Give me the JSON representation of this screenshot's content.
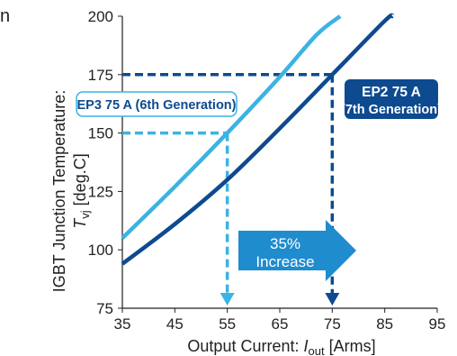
{
  "cut_text": "n",
  "colors": {
    "ep3": "#3bb3e3",
    "ep2": "#0d4a8f",
    "arrow": "#1f8ccd",
    "text": "#231f20"
  },
  "chart_data": {
    "type": "line",
    "xlabel": {
      "main": "Output Current: ",
      "italic": "I",
      "sub": "out",
      "unit": " [Arms]"
    },
    "ylabel": {
      "line1": "IGBT Junction Temperature:",
      "italic": "T",
      "sub": "vj",
      "unit": " [deg.C]"
    },
    "xlim": [
      35,
      95
    ],
    "ylim": [
      75,
      200
    ],
    "xticks": [
      "35",
      "45",
      "55",
      "65",
      "75",
      "85",
      "95"
    ],
    "yticks": [
      "75",
      "100",
      "125",
      "150",
      "175",
      "200"
    ],
    "series": [
      {
        "name": "EP3 75 A (6th Generation)",
        "x": [
          35,
          45,
          55,
          65,
          72,
          76.5
        ],
        "y": [
          105,
          127,
          150,
          174,
          192,
          200
        ]
      },
      {
        "name": "EP2 75 A (7th Generation)",
        "x": [
          35,
          45,
          55,
          65,
          75,
          85,
          86.5
        ],
        "y": [
          94,
          111,
          130,
          152,
          175,
          198,
          200
        ]
      }
    ],
    "reference": {
      "y": 175,
      "ep3_y": 150,
      "x_ep3": 55,
      "x_ep2": 75
    },
    "labels": {
      "ep3_line1": "EP3 75 A (6th Generation)",
      "ep2_line1": "EP2 75 A",
      "ep2_line2": "(7th Generation)",
      "arrow_line1": "35%",
      "arrow_line2": "Increase"
    }
  }
}
